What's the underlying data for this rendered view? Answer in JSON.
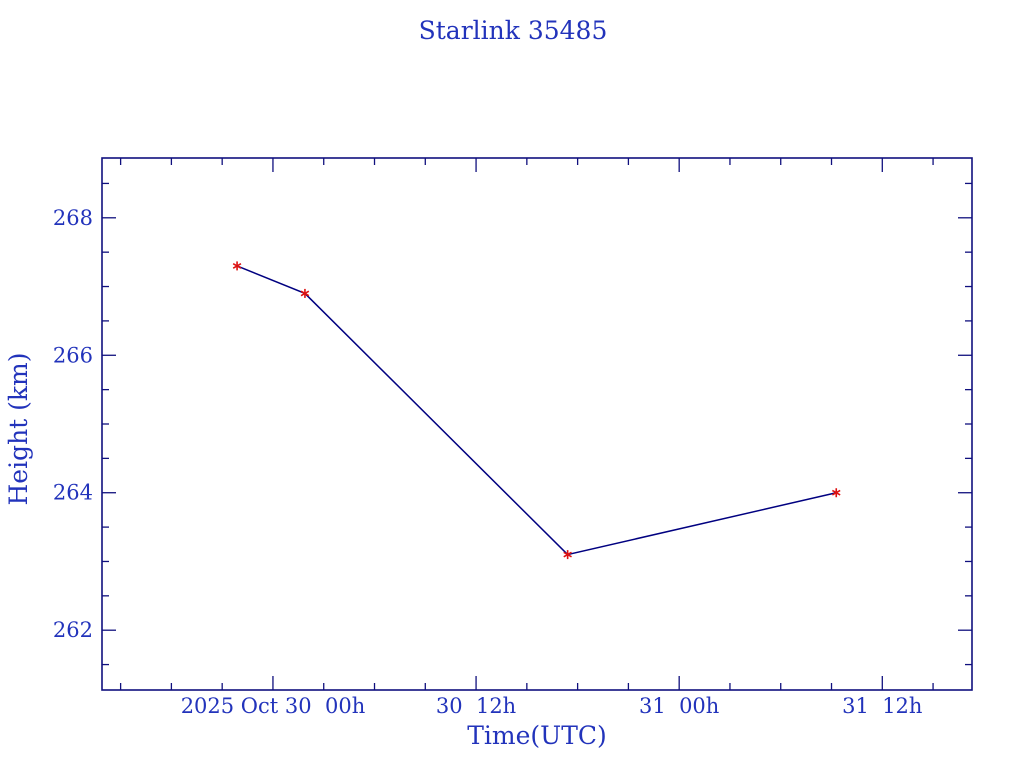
{
  "page": {
    "background": "#ffffff",
    "description": "Satellite orbital height decay plot"
  },
  "chart_data": {
    "type": "line",
    "title": "Starlink 35485",
    "xlabel": "Time(UTC)",
    "ylabel": "Height (km)",
    "x_axis_unit": "hours since 2025-10-30 00:00 UTC",
    "xlim": [
      -10.1,
      41.3
    ],
    "ylim": [
      261.13,
      268.87
    ],
    "grid": false,
    "frame_style": "closed box, inward ticks on all four sides",
    "x_major_ticks": [
      {
        "hours": 0,
        "label": "2025 Oct 30  00h"
      },
      {
        "hours": 12,
        "label": "30  12h"
      },
      {
        "hours": 24,
        "label": "31  00h"
      },
      {
        "hours": 36,
        "label": "31  12h"
      }
    ],
    "x_minor_step_hours": 3,
    "y_major_ticks": [
      {
        "value": 262,
        "label": "262"
      },
      {
        "value": 264,
        "label": "264"
      },
      {
        "value": 266,
        "label": "266"
      },
      {
        "value": 268,
        "label": "268"
      }
    ],
    "y_minor_step": 0.5,
    "series": [
      {
        "name": "Starlink 35485 height",
        "marker": "asterisk",
        "points": [
          {
            "time_utc": "2025-10-29 ~21:55",
            "hours": -2.12,
            "height_km": 267.3
          },
          {
            "time_utc": "2025-10-30 ~01:55",
            "hours": 1.89,
            "height_km": 266.9
          },
          {
            "time_utc": "2025-10-30 ~17:25",
            "hours": 17.41,
            "height_km": 263.1
          },
          {
            "time_utc": "2025-10-31 ~09:15",
            "hours": 33.28,
            "height_km": 264.0
          }
        ]
      }
    ],
    "colors": {
      "frame": "#10107e",
      "text": "#2233bb",
      "line": "#000080",
      "marker": "#dd1111",
      "background": "#ffffff"
    }
  }
}
